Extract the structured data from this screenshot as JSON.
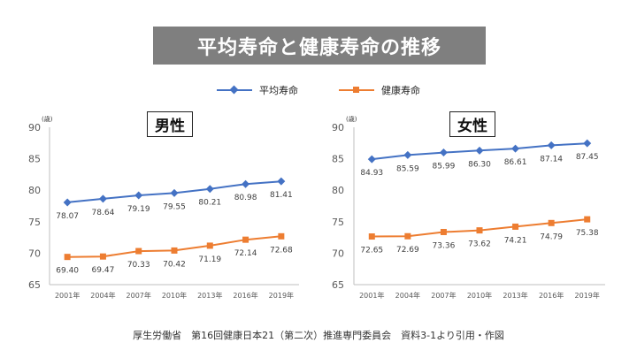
{
  "title": "平均寿命と健康寿命の推移",
  "legend": {
    "series1": "平均寿命",
    "series2": "健康寿命"
  },
  "colors": {
    "series1": "#4472c4",
    "series2": "#ed7d31",
    "title_bg": "#7f7f7f"
  },
  "source": "厚生労働省　第16回健康日本21（第二次）推進専門委員会　資料3-1より引用・作図",
  "chart_data": [
    {
      "type": "line",
      "title": "男性",
      "ylabel": "(歳)",
      "categories": [
        "2001年",
        "2004年",
        "2007年",
        "2010年",
        "2013年",
        "2016年",
        "2019年"
      ],
      "ylim": [
        65,
        90
      ],
      "yticks": [
        65,
        70,
        75,
        80,
        85,
        90
      ],
      "grid": false,
      "legend": "top",
      "series": [
        {
          "name": "平均寿命",
          "marker": "diamond",
          "values": [
            78.07,
            78.64,
            79.19,
            79.55,
            80.21,
            80.98,
            81.41
          ],
          "labels": [
            "78.07",
            "78.64",
            "79.19",
            "79.55",
            "80.21",
            "80.98",
            "81.41"
          ]
        },
        {
          "name": "健康寿命",
          "marker": "square",
          "values": [
            69.4,
            69.47,
            70.33,
            70.42,
            71.19,
            72.14,
            72.68
          ],
          "labels": [
            "69.40",
            "69.47",
            "70.33",
            "70.42",
            "71.19",
            "72.14",
            "72.68"
          ]
        }
      ]
    },
    {
      "type": "line",
      "title": "女性",
      "ylabel": "(歳)",
      "categories": [
        "2001年",
        "2004年",
        "2007年",
        "2010年",
        "2013年",
        "2016年",
        "2019年"
      ],
      "ylim": [
        65,
        90
      ],
      "yticks": [
        65,
        70,
        75,
        80,
        85,
        90
      ],
      "grid": false,
      "legend": "top",
      "series": [
        {
          "name": "平均寿命",
          "marker": "diamond",
          "values": [
            84.93,
            85.59,
            85.99,
            86.3,
            86.61,
            87.14,
            87.45
          ],
          "labels": [
            "84.93",
            "85.59",
            "85.99",
            "86.30",
            "86.61",
            "87.14",
            "87.45"
          ]
        },
        {
          "name": "健康寿命",
          "marker": "square",
          "values": [
            72.65,
            72.69,
            73.36,
            73.62,
            74.21,
            74.79,
            75.38
          ],
          "labels": [
            "72.65",
            "72.69",
            "73.36",
            "73.62",
            "74.21",
            "74.79",
            "75.38"
          ]
        }
      ]
    }
  ]
}
